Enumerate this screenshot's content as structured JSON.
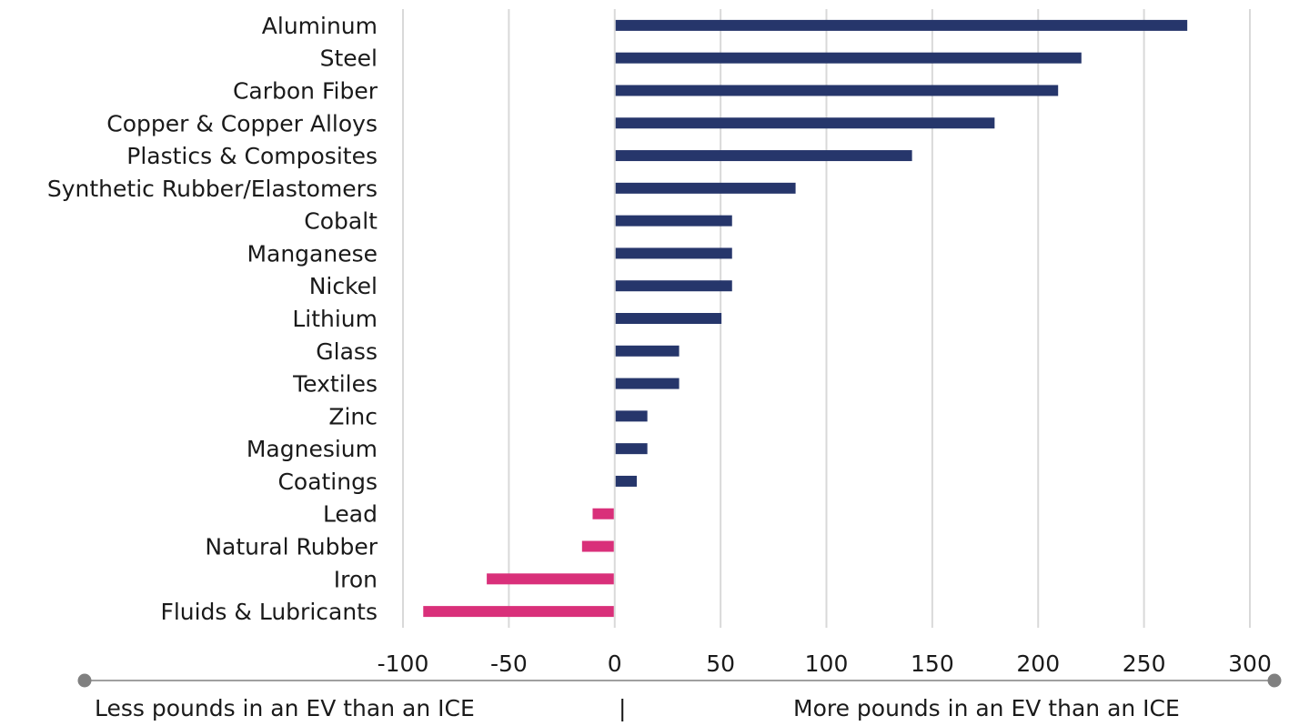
{
  "chart_data": {
    "type": "bar",
    "orientation": "horizontal",
    "title": "",
    "xlabel": "",
    "ylabel": "",
    "xlim": [
      -100,
      300
    ],
    "xticks": [
      "-100",
      "-50",
      "0",
      "50",
      "100",
      "150",
      "200",
      "250",
      "300"
    ],
    "grid": "vertical",
    "legend": "none",
    "categories": [
      "Aluminum",
      "Steel",
      "Carbon Fiber",
      "Copper & Copper Alloys",
      "Plastics & Composites",
      "Synthetic Rubber/Elastomers",
      "Cobalt",
      "Manganese",
      "Nickel",
      "Lithium",
      "Glass",
      "Textiles",
      "Zinc",
      "Magnesium",
      "Coatings",
      "Lead",
      "Natural Rubber",
      "Iron",
      "Fluids & Lubricants"
    ],
    "values": [
      270,
      220,
      209,
      179,
      140,
      85,
      55,
      55,
      55,
      50,
      30,
      30,
      15,
      15,
      10,
      -10,
      -15,
      -60,
      -90
    ],
    "colors": {
      "positive": "#26366b",
      "negative": "#d9307a",
      "grid": "#d9d9d9",
      "axis_line": "#808080"
    }
  },
  "footer": {
    "left_text": "Less pounds in an EV than an ICE",
    "divider": "|",
    "right_text": "More pounds in an EV than an ICE"
  }
}
